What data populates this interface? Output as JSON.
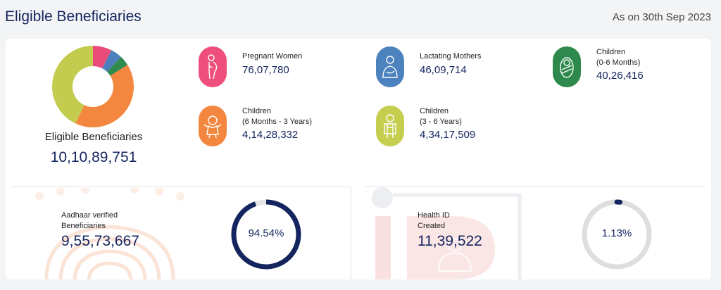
{
  "header": {
    "title": "Eligible Beneficiaries",
    "as_on": "As on 30th Sep 2023"
  },
  "summary": {
    "label": "Eligible Beneficiaries",
    "total": "10,10,89,751"
  },
  "donut": {
    "segments": [
      {
        "category": "Pregnant Women",
        "value": 7607780,
        "color": "#e94c7b"
      },
      {
        "category": "Lactating Mothers",
        "value": 4609714,
        "color": "#4e7fbd"
      },
      {
        "category": "Children (0-6 Months)",
        "value": 4026416,
        "color": "#2f8a4e"
      },
      {
        "category": "Children (6 Months - 3 Years)",
        "value": 41428332,
        "color": "#f3873f"
      },
      {
        "category": "Children (3 - 6 Years)",
        "value": 43417509,
        "color": "#c4cc4f"
      }
    ]
  },
  "categories": [
    {
      "id": "pregnant",
      "label_line1": "Pregnant Women",
      "label_line2": "",
      "value": "76,07,780",
      "color": "#ee4f7c",
      "icon": "pregnant-woman-icon"
    },
    {
      "id": "lactating",
      "label_line1": "Lactating Mothers",
      "label_line2": "",
      "value": "46,09,714",
      "color": "#4c82bd",
      "icon": "lactating-mother-icon"
    },
    {
      "id": "children-0-6m",
      "label_line1": "Children",
      "label_line2": "(0-6 Months)",
      "value": "40,26,416",
      "color": "#2e8a4c",
      "icon": "newborn-icon"
    },
    {
      "id": "children-6m-3y",
      "label_line1": "Children",
      "label_line2": "(6 Months - 3 Years)",
      "value": "4,14,28,332",
      "color": "#f3873f",
      "icon": "toddler-icon"
    },
    {
      "id": "children-3-6y",
      "label_line1": "Children",
      "label_line2": "(3 - 6 Years)",
      "value": "4,34,17,509",
      "color": "#c6ce50",
      "icon": "child-icon"
    }
  ],
  "aadhaar": {
    "label_line1": "Aadhaar verified",
    "label_line2": "Beneficiaries",
    "value": "9,55,73,667",
    "percent_text": "94.54%",
    "percent": 94.54,
    "ring_color": "#14245e"
  },
  "health_id": {
    "label_line1": "Health ID",
    "label_line2": "Created",
    "value": "11,39,522",
    "percent_text": "1.13%",
    "percent": 1.13,
    "ring_color": "#14245e",
    "track_color": "#dedede"
  }
}
